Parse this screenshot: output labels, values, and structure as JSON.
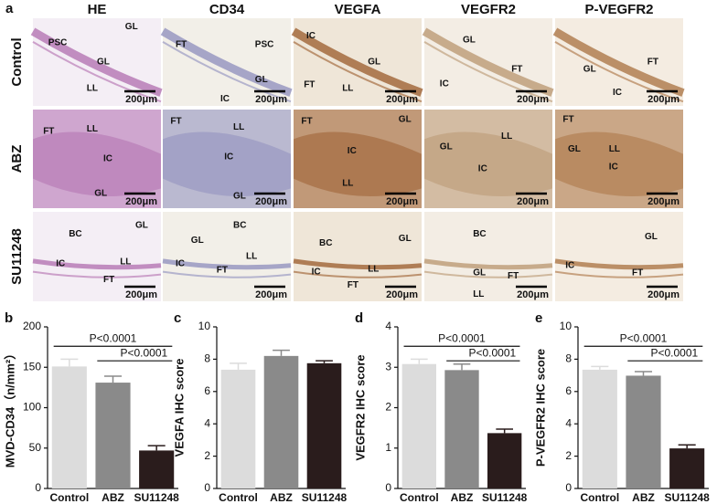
{
  "figure_label": "a",
  "image_panel": {
    "columns": [
      "HE",
      "CD34",
      "VEGFA",
      "VEGFR2",
      "P-VEGFR2"
    ],
    "rows": [
      "Control",
      "ABZ",
      "SU11248"
    ],
    "scale_bar": "200μm",
    "images": [
      [
        [
          "PSC",
          "GL",
          "GL",
          "LL"
        ],
        [
          "FT",
          "PSC",
          "GL",
          "IC"
        ],
        [
          "IC",
          "GL",
          "FT",
          "LL"
        ],
        [
          "GL",
          "IC",
          "FT"
        ],
        [
          "GL",
          "FT",
          "IC"
        ]
      ],
      [
        [
          "FT",
          "LL",
          "IC",
          "GL"
        ],
        [
          "FT",
          "LL",
          "IC",
          "GL"
        ],
        [
          "FT",
          "GL",
          "IC",
          "LL"
        ],
        [
          "GL",
          "LL",
          "IC"
        ],
        [
          "FT",
          "GL",
          "LL",
          "IC"
        ]
      ],
      [
        [
          "BC",
          "GL",
          "IC",
          "LL",
          "FT"
        ],
        [
          "BC",
          "GL",
          "LL",
          "IC",
          "FT"
        ],
        [
          "BC",
          "GL",
          "IC",
          "LL",
          "FT"
        ],
        [
          "BC",
          "GL",
          "FT",
          "LL"
        ],
        [
          "GL",
          "IC",
          "FT"
        ]
      ]
    ]
  },
  "chart_data": [
    {
      "type": "bar",
      "panel": "b",
      "ylabel": "MVD-CD34（n/mm²）",
      "categories": [
        "Control",
        "ABZ",
        "SU11248"
      ],
      "values": [
        151,
        131,
        47
      ],
      "errors": [
        9,
        8,
        6
      ],
      "colors": [
        "#dcdcdc",
        "#8a8a8a",
        "#2a1c1c"
      ],
      "ylim": [
        0,
        200
      ],
      "yticks": [
        0,
        50,
        100,
        150,
        200
      ],
      "comparisons": [
        {
          "label": "P<0.0001",
          "pair": [
            "Control",
            "SU11248"
          ]
        },
        {
          "label": "P<0.0001",
          "pair": [
            "ABZ",
            "SU11248"
          ]
        }
      ]
    },
    {
      "type": "bar",
      "panel": "c",
      "ylabel": "VEGFA IHC score",
      "categories": [
        "Control",
        "ABZ",
        "SU11248"
      ],
      "values": [
        7.35,
        8.2,
        7.75
      ],
      "errors": [
        0.4,
        0.35,
        0.15
      ],
      "colors": [
        "#dcdcdc",
        "#8a8a8a",
        "#2a1c1c"
      ],
      "ylim": [
        0,
        10
      ],
      "yticks": [
        0,
        2,
        4,
        6,
        8,
        10
      ],
      "comparisons": []
    },
    {
      "type": "bar",
      "panel": "d",
      "ylabel": "VEGFR2 IHC score",
      "categories": [
        "Control",
        "ABZ",
        "SU11248"
      ],
      "values": [
        3.08,
        2.93,
        1.37
      ],
      "errors": [
        0.12,
        0.15,
        0.1
      ],
      "colors": [
        "#dcdcdc",
        "#8a8a8a",
        "#2a1c1c"
      ],
      "ylim": [
        0,
        4
      ],
      "yticks": [
        0,
        1,
        2,
        3,
        4
      ],
      "comparisons": [
        {
          "label": "P<0.0001",
          "pair": [
            "Control",
            "SU11248"
          ]
        },
        {
          "label": "P<0.0001",
          "pair": [
            "ABZ",
            "SU11248"
          ]
        }
      ]
    },
    {
      "type": "bar",
      "panel": "e",
      "ylabel": "P-VEGFR2 IHC score",
      "categories": [
        "Control",
        "ABZ",
        "SU11248"
      ],
      "values": [
        7.35,
        6.98,
        2.48
      ],
      "errors": [
        0.2,
        0.25,
        0.22
      ],
      "colors": [
        "#dcdcdc",
        "#8a8a8a",
        "#2a1c1c"
      ],
      "ylim": [
        0,
        10
      ],
      "yticks": [
        0,
        2,
        4,
        6,
        8,
        10
      ],
      "comparisons": [
        {
          "label": "P<0.0001",
          "pair": [
            "Control",
            "SU11248"
          ]
        },
        {
          "label": "P<0.0001",
          "pair": [
            "ABZ",
            "SU11248"
          ]
        }
      ]
    }
  ]
}
